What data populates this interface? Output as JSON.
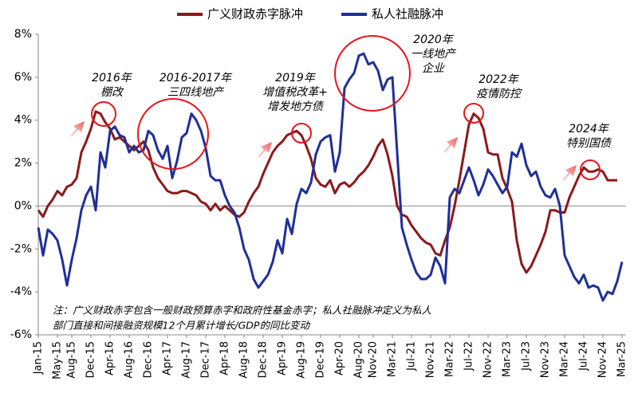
{
  "chart_data": {
    "type": "line",
    "categories": [
      "Jan-15",
      null,
      null,
      null,
      "May-15",
      null,
      null,
      "Aug-15",
      null,
      null,
      null,
      "Dec-15",
      null,
      null,
      null,
      "Apr-16",
      null,
      null,
      null,
      "Aug-16",
      null,
      null,
      null,
      "Dec-16",
      null,
      null,
      null,
      "Apr-17",
      null,
      null,
      null,
      "Aug-17",
      null,
      null,
      null,
      "Dec-17",
      null,
      null,
      null,
      "Apr-18",
      null,
      null,
      null,
      "Aug-18",
      null,
      null,
      null,
      "Dec-18",
      null,
      null,
      null,
      "Apr-19",
      null,
      null,
      null,
      "Aug-19",
      null,
      null,
      null,
      "Dec-19",
      null,
      null,
      null,
      "Apr-20",
      null,
      null,
      null,
      "Aug-20",
      null,
      null,
      "Nov-20",
      null,
      null,
      null,
      "Mar-21",
      null,
      null,
      null,
      "Jul-21",
      null,
      null,
      null,
      "Nov-21",
      null,
      null,
      null,
      "Mar-22",
      null,
      null,
      null,
      "Jul-22",
      null,
      null,
      null,
      "Nov-22",
      null,
      null,
      null,
      "Mar-23",
      null,
      null,
      null,
      "Jul-23",
      null,
      null,
      null,
      "Nov-23",
      null,
      null,
      null,
      "Mar-24",
      null,
      null,
      null,
      "Jul-24",
      null,
      null,
      null,
      "Nov-24",
      null,
      null,
      null,
      "Mar-25"
    ],
    "series": [
      {
        "name": "广义财政赤字脉冲",
        "color": "#8b1a1a",
        "values": [
          -0.2,
          -0.5,
          0,
          0.3,
          0.7,
          0.5,
          0.9,
          1.0,
          1.3,
          2.5,
          3.0,
          3.6,
          4.4,
          4.3,
          3.9,
          3.6,
          3.1,
          3.2,
          3.0,
          2.8,
          2.6,
          2.8,
          3.0,
          2.6,
          1.8,
          1.3,
          1.0,
          0.7,
          0.6,
          0.6,
          0.7,
          0.7,
          0.6,
          0.5,
          0.2,
          0.1,
          -0.2,
          0.1,
          -0.2,
          0.0,
          -0.2,
          -0.4,
          -0.5,
          -0.3,
          0.2,
          0.6,
          0.9,
          1.5,
          2.0,
          2.5,
          2.8,
          3.0,
          3.3,
          3.4,
          3.5,
          3.3,
          2.8,
          2.2,
          1.3,
          1.0,
          0.9,
          1.2,
          0.6,
          1.0,
          1.1,
          0.9,
          1.1,
          1.4,
          1.6,
          1.9,
          2.3,
          2.8,
          3.1,
          2.4,
          1.4,
          0.0,
          -0.4,
          -0.5,
          -0.9,
          -1.2,
          -1.5,
          -1.7,
          -1.8,
          -2.2,
          -2.3,
          -1.6,
          -1.0,
          0.0,
          1.2,
          2.5,
          3.8,
          4.3,
          4.1,
          3.6,
          2.5,
          2.4,
          2.4,
          1.3,
          0.8,
          0.2,
          -1.6,
          -2.7,
          -3.1,
          -2.8,
          -2.3,
          -1.8,
          -1.2,
          -0.2,
          -0.2,
          -0.3,
          -0.3,
          0.4,
          0.9,
          1.4,
          1.8,
          1.6,
          1.6,
          1.7,
          1.6,
          1.2,
          1.2,
          1.2,
          null
        ]
      },
      {
        "name": "私人社融脉冲",
        "color": "#1f2f9a",
        "values": [
          -1.0,
          -2.3,
          -1.1,
          -1.3,
          -1.6,
          -2.5,
          -3.7,
          -2.5,
          -1.5,
          -0.2,
          0.5,
          0.9,
          -0.2,
          2.5,
          1.8,
          3.5,
          3.7,
          3.3,
          3.2,
          2.5,
          2.8,
          2.5,
          2.6,
          3.5,
          3.3,
          2.6,
          2.2,
          2.8,
          1.3,
          2.1,
          3.2,
          3.4,
          4.3,
          4.0,
          3.5,
          2.7,
          1.4,
          1.2,
          1.2,
          0.5,
          0.0,
          -0.3,
          -1.0,
          -2.0,
          -2.5,
          -3.4,
          -3.8,
          -3.5,
          -3.2,
          -2.6,
          -1.6,
          -2.2,
          -0.6,
          -1.3,
          0.1,
          0.8,
          0.6,
          1.1,
          2.4,
          3.0,
          3.2,
          3.3,
          1.6,
          2.5,
          5.5,
          5.9,
          6.2,
          7.0,
          7.1,
          6.6,
          6.7,
          6.3,
          5.4,
          5.9,
          6.0,
          2.5,
          -1.0,
          -1.8,
          -2.5,
          -3.1,
          -3.4,
          -3.4,
          -3.2,
          -2.4,
          -2.8,
          -3.6,
          0.4,
          0.8,
          0.6,
          1.2,
          1.8,
          1.2,
          0.5,
          1.0,
          1.7,
          1.4,
          1.0,
          0.6,
          0.9,
          2.5,
          2.3,
          2.9,
          1.9,
          1.4,
          1.6,
          0.9,
          0.5,
          0.4,
          0.8,
          0.0,
          -2.3,
          -2.8,
          -3.3,
          -3.6,
          -3.2,
          -3.8,
          -3.7,
          -3.8,
          -4.4,
          -4.0,
          -4.1,
          -3.5,
          -2.6
        ]
      }
    ],
    "ylim": [
      -6,
      8
    ],
    "yticks": [
      {
        "value": -6,
        "label": "-6%"
      },
      {
        "value": -4,
        "label": "-4%"
      },
      {
        "value": -2,
        "label": "-2%"
      },
      {
        "value": 0,
        "label": "0%"
      },
      {
        "value": 2,
        "label": "2%"
      },
      {
        "value": 4,
        "label": "4%"
      },
      {
        "value": 6,
        "label": "6%"
      },
      {
        "value": 8,
        "label": "8%"
      }
    ],
    "annotations": [
      {
        "lines": [
          "2016年",
          "棚改"
        ]
      },
      {
        "lines": [
          "2016-2017年",
          "三四线地产"
        ]
      },
      {
        "lines": [
          "2019年",
          "增值税改革+",
          "增发地方债"
        ]
      },
      {
        "lines": [
          "2020年",
          "一线地产",
          "企业"
        ]
      },
      {
        "lines": [
          "2022年",
          "疫情防控"
        ]
      },
      {
        "lines": [
          "2024年",
          "特别国债"
        ]
      }
    ],
    "note": [
      "注：广义财政赤字包含一般财政预算赤字和政府性基金赤字；私人社融脉冲定义为私人",
      "部门直接和间接融资规模12个月累计增长/GDP的同比变动"
    ]
  }
}
